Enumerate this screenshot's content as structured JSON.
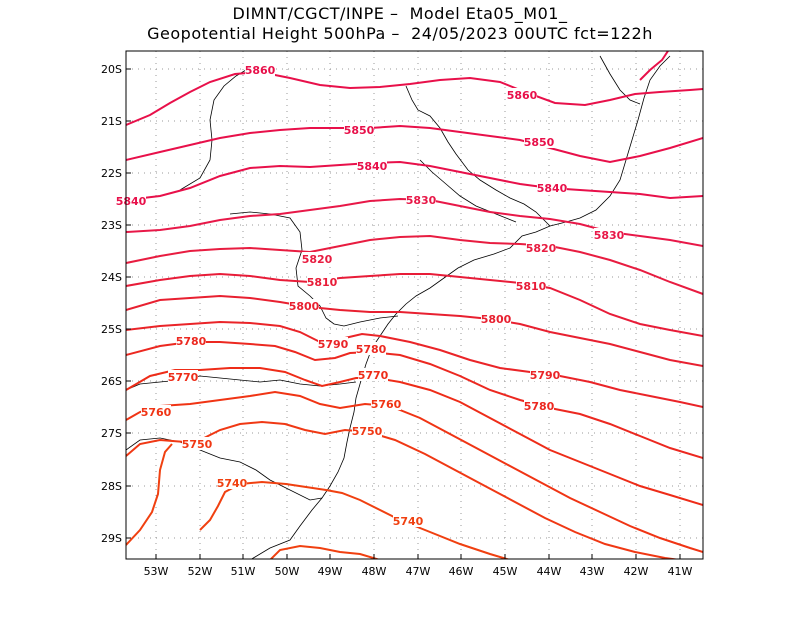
{
  "header": {
    "line1": "DIMNT/CGCT/INPE –  Model Eta05_M01_",
    "line2": "Geopotential Height 500hPa –  24/05/2023 00UTC fct=122h"
  },
  "axes": {
    "lat_ticks": [
      "20S",
      "21S",
      "22S",
      "23S",
      "24S",
      "25S",
      "26S",
      "27S",
      "28S",
      "29S"
    ],
    "lon_ticks": [
      "53W",
      "52W",
      "51W",
      "50W",
      "49W",
      "48W",
      "47W",
      "46W",
      "45W",
      "44W",
      "43W",
      "42W",
      "41W"
    ]
  },
  "colors": {
    "high": "#e8104a",
    "low": "#f04010",
    "coast": "#000000",
    "grid": "#9a9a9a"
  },
  "contours": [
    {
      "value": "5860",
      "color": "#e8104a"
    },
    {
      "value": "5850",
      "color": "#e8104a"
    },
    {
      "value": "5840",
      "color": "#e8104a"
    },
    {
      "value": "5830",
      "color": "#e81848"
    },
    {
      "value": "5820",
      "color": "#e81c40"
    },
    {
      "value": "5810",
      "color": "#e81c38"
    },
    {
      "value": "5800",
      "color": "#e82030"
    },
    {
      "value": "5790",
      "color": "#ea2428"
    },
    {
      "value": "5780",
      "color": "#ec2820"
    },
    {
      "value": "5770",
      "color": "#ee2c18"
    },
    {
      "value": "5760",
      "color": "#f03414"
    },
    {
      "value": "5750",
      "color": "#f03814"
    },
    {
      "value": "5740",
      "color": "#f04010"
    }
  ]
}
